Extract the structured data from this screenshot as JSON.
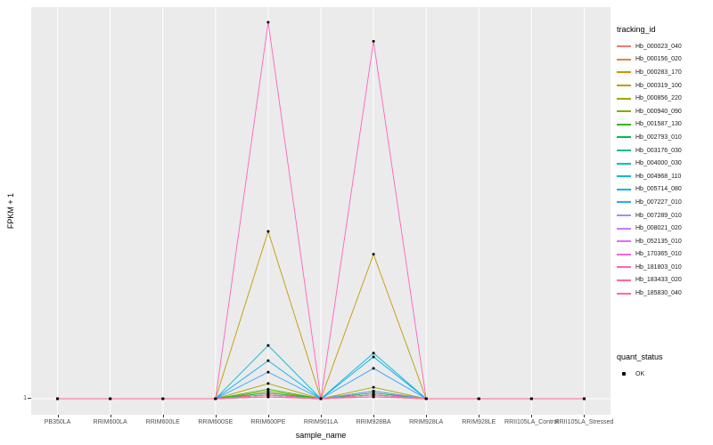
{
  "figure": {
    "y_axis_title": "FPKM + 1",
    "x_axis_title": "sample_name",
    "y_tick_label": "1"
  },
  "legend": {
    "tracking": {
      "title": "tracking_id"
    },
    "quant_status": {
      "title": "quant_status",
      "items": [
        {
          "label": "OK"
        }
      ]
    }
  },
  "chart_data": {
    "type": "line",
    "title": "",
    "xlabel": "sample_name",
    "ylabel": "FPKM + 1",
    "ylim": [
      1,
      100
    ],
    "y_tick_labels": [
      "1"
    ],
    "panel_bg": "#EBEBEB",
    "grid_color": "#FFFFFF",
    "point_color": "#000000",
    "legend_position": "right",
    "categories": [
      "PB350LA",
      "RRIM600LA",
      "RRIM600LE",
      "RRIM600SE",
      "RRIM600PE",
      "RRIM901LA",
      "RRIM928BA",
      "RRIM928LA",
      "RRIM928LE",
      "RRII105LA_Control",
      "RRII105LA_Stressed"
    ],
    "series": [
      {
        "name": "Hb_000023_040",
        "color": "#F8766D",
        "values": [
          1,
          1,
          1,
          1,
          1.5,
          1,
          2,
          1,
          1,
          1,
          1
        ]
      },
      {
        "name": "Hb_000156_020",
        "color": "#EA8331",
        "values": [
          1,
          1,
          1,
          1,
          2,
          1,
          2,
          1,
          1,
          1,
          1
        ]
      },
      {
        "name": "Hb_000283_170",
        "color": "#D89000",
        "values": [
          1,
          1,
          1,
          1,
          2.5,
          1,
          2,
          1,
          1,
          1,
          1
        ]
      },
      {
        "name": "Hb_000319_100",
        "color": "#C09B00",
        "values": [
          1,
          1,
          1,
          1,
          45,
          1,
          39,
          1,
          1,
          1,
          1
        ]
      },
      {
        "name": "Hb_000856_220",
        "color": "#A3A500",
        "values": [
          1,
          1,
          1,
          1,
          5,
          1,
          4,
          1,
          1,
          1,
          1
        ]
      },
      {
        "name": "Hb_000940_090",
        "color": "#7CAE00",
        "values": [
          1,
          1,
          1,
          1,
          3,
          1,
          3,
          1,
          1,
          1,
          1
        ]
      },
      {
        "name": "Hb_001587_130",
        "color": "#39B600",
        "values": [
          1,
          1,
          1,
          1,
          3.5,
          1,
          3,
          1,
          1,
          1,
          1
        ]
      },
      {
        "name": "Hb_002793_010",
        "color": "#00BB4E",
        "values": [
          1,
          1,
          1,
          1,
          2.5,
          1,
          2.5,
          1,
          1,
          1,
          1
        ]
      },
      {
        "name": "Hb_003176_030",
        "color": "#00C087",
        "values": [
          1,
          1,
          1,
          1,
          2,
          1,
          2,
          1,
          1,
          1,
          1
        ]
      },
      {
        "name": "Hb_004000_030",
        "color": "#00C0AF",
        "values": [
          1,
          1,
          1,
          1,
          2,
          1,
          3,
          1,
          1,
          1,
          1
        ]
      },
      {
        "name": "Hb_004968_110",
        "color": "#00BCD8",
        "values": [
          1,
          1,
          1,
          1,
          15,
          1,
          13,
          1,
          1,
          1,
          1
        ]
      },
      {
        "name": "Hb_005714_080",
        "color": "#00B0F6",
        "values": [
          1,
          1,
          1,
          1,
          11,
          1,
          12,
          1,
          1,
          1,
          1
        ]
      },
      {
        "name": "Hb_007227_010",
        "color": "#35A2FF",
        "values": [
          1,
          1,
          1,
          1,
          8,
          1,
          9,
          1,
          1,
          1,
          1
        ]
      },
      {
        "name": "Hb_007289_010",
        "color": "#9590FF",
        "values": [
          1,
          1,
          1,
          1,
          2,
          1,
          3,
          1,
          1,
          1,
          1
        ]
      },
      {
        "name": "Hb_008021_020",
        "color": "#C77CFF",
        "values": [
          1,
          1,
          1,
          1,
          1.5,
          1,
          2,
          1,
          1,
          1,
          1
        ]
      },
      {
        "name": "Hb_052135_010",
        "color": "#E76BF3",
        "values": [
          1,
          1,
          1,
          1,
          2,
          1,
          2,
          1,
          1,
          1,
          1
        ]
      },
      {
        "name": "Hb_170365_010",
        "color": "#FA62DB",
        "values": [
          1,
          1,
          1,
          1,
          1.5,
          1,
          1.5,
          1,
          1,
          1,
          1
        ]
      },
      {
        "name": "Hb_181803_010",
        "color": "#FF62BC",
        "values": [
          1,
          1,
          1,
          1,
          100,
          1,
          95,
          1,
          1,
          1,
          1
        ]
      },
      {
        "name": "Hb_183433_020",
        "color": "#FF6A98",
        "values": [
          1,
          1,
          1,
          1,
          2,
          1,
          2,
          1,
          1,
          1,
          1
        ]
      },
      {
        "name": "Hb_185830_040",
        "color": "#FF6C91",
        "values": [
          1,
          1,
          1,
          1,
          1.5,
          1,
          1.5,
          1,
          1,
          1,
          1
        ]
      }
    ]
  }
}
